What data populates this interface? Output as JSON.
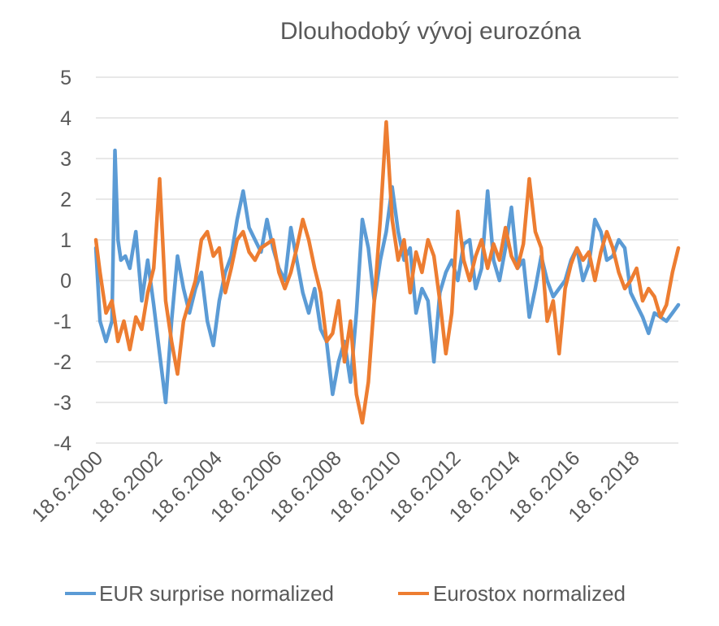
{
  "chart_data": {
    "type": "line",
    "title": "Dlouhodobý vývoj eurozóna",
    "xlabel": "",
    "ylabel": "",
    "ylim": [
      -4,
      5
    ],
    "yticks": [
      "5",
      "4",
      "3",
      "2",
      "1",
      "0",
      "-1",
      "-2",
      "-3",
      "-4"
    ],
    "ytick_values": [
      5,
      4,
      3,
      2,
      1,
      0,
      -1,
      -2,
      -3,
      -4
    ],
    "xlim": [
      2000.46,
      2020.0
    ],
    "xticks": [
      "18.6.2000",
      "18.6.2002",
      "18.6.2004",
      "18.6.2006",
      "18.6.2008",
      "18.6.2010",
      "18.6.2012",
      "18.6.2014",
      "18.6.2016",
      "18.6.2018"
    ],
    "xtick_values": [
      2000.46,
      2002.46,
      2004.46,
      2006.46,
      2008.46,
      2010.46,
      2012.46,
      2014.46,
      2016.46,
      2018.46
    ],
    "grid": true,
    "legend_position": "bottom",
    "series": [
      {
        "name": "EUR surprise normalized",
        "color": "#5b9bd5",
        "x": [
          2000.46,
          2000.6,
          2000.8,
          2001.0,
          2001.1,
          2001.2,
          2001.3,
          2001.45,
          2001.6,
          2001.8,
          2002.0,
          2002.2,
          2002.4,
          2002.6,
          2002.8,
          2003.0,
          2003.2,
          2003.4,
          2003.6,
          2003.8,
          2004.0,
          2004.2,
          2004.4,
          2004.6,
          2004.8,
          2005.0,
          2005.2,
          2005.4,
          2005.6,
          2005.8,
          2006.0,
          2006.2,
          2006.4,
          2006.6,
          2006.8,
          2007.0,
          2007.2,
          2007.4,
          2007.6,
          2007.8,
          2008.0,
          2008.2,
          2008.4,
          2008.6,
          2008.8,
          2009.0,
          2009.2,
          2009.4,
          2009.6,
          2009.8,
          2010.0,
          2010.2,
          2010.4,
          2010.6,
          2010.8,
          2011.0,
          2011.2,
          2011.4,
          2011.6,
          2011.8,
          2012.0,
          2012.2,
          2012.4,
          2012.6,
          2012.8,
          2013.0,
          2013.2,
          2013.4,
          2013.6,
          2013.8,
          2014.0,
          2014.2,
          2014.4,
          2014.6,
          2014.8,
          2015.0,
          2015.2,
          2015.4,
          2015.6,
          2015.8,
          2016.0,
          2016.2,
          2016.4,
          2016.6,
          2016.8,
          2017.0,
          2017.2,
          2017.4,
          2017.6,
          2017.8,
          2018.0,
          2018.2,
          2018.4,
          2018.6,
          2018.8,
          2019.0,
          2019.2,
          2019.4,
          2019.6,
          2019.8,
          2020.0
        ],
        "values": [
          0.8,
          -1.0,
          -1.5,
          -1.0,
          3.2,
          1.0,
          0.5,
          0.6,
          0.3,
          1.2,
          -0.5,
          0.5,
          -0.6,
          -1.8,
          -3.0,
          -1.0,
          0.6,
          -0.2,
          -0.8,
          -0.2,
          0.2,
          -1.0,
          -1.6,
          -0.5,
          0.2,
          0.6,
          1.5,
          2.2,
          1.3,
          1.0,
          0.7,
          1.5,
          0.8,
          0.3,
          0.0,
          1.3,
          0.5,
          -0.3,
          -0.8,
          -0.2,
          -1.2,
          -1.5,
          -2.8,
          -2.0,
          -1.5,
          -2.5,
          -0.8,
          1.5,
          0.8,
          -0.5,
          0.5,
          1.2,
          2.3,
          1.2,
          0.5,
          0.8,
          -0.8,
          -0.2,
          -0.5,
          -2.0,
          -0.3,
          0.2,
          0.5,
          0.0,
          0.9,
          1.0,
          -0.2,
          0.3,
          2.2,
          0.5,
          0.0,
          0.8,
          1.8,
          0.3,
          0.5,
          -0.9,
          -0.2,
          0.6,
          0.0,
          -0.4,
          -0.2,
          0.0,
          0.5,
          0.8,
          0.0,
          0.4,
          1.5,
          1.2,
          0.5,
          0.6,
          1.0,
          0.8,
          -0.3,
          -0.6,
          -0.9,
          -1.3,
          -0.8,
          -0.9,
          -1.0,
          -0.8,
          -0.6
        ]
      },
      {
        "name": "Eurostox normalized",
        "color": "#ed7d31",
        "x": [
          2000.46,
          2000.6,
          2000.8,
          2001.0,
          2001.2,
          2001.4,
          2001.6,
          2001.8,
          2002.0,
          2002.2,
          2002.4,
          2002.6,
          2002.8,
          2003.0,
          2003.2,
          2003.4,
          2003.6,
          2003.8,
          2004.0,
          2004.2,
          2004.4,
          2004.6,
          2004.8,
          2005.0,
          2005.2,
          2005.4,
          2005.6,
          2005.8,
          2006.0,
          2006.2,
          2006.4,
          2006.6,
          2006.8,
          2007.0,
          2007.2,
          2007.4,
          2007.6,
          2007.8,
          2008.0,
          2008.2,
          2008.4,
          2008.6,
          2008.8,
          2009.0,
          2009.2,
          2009.4,
          2009.6,
          2009.8,
          2010.0,
          2010.2,
          2010.4,
          2010.6,
          2010.8,
          2011.0,
          2011.2,
          2011.4,
          2011.6,
          2011.8,
          2012.0,
          2012.2,
          2012.4,
          2012.6,
          2012.8,
          2013.0,
          2013.2,
          2013.4,
          2013.6,
          2013.8,
          2014.0,
          2014.2,
          2014.4,
          2014.6,
          2014.8,
          2015.0,
          2015.2,
          2015.4,
          2015.6,
          2015.8,
          2016.0,
          2016.2,
          2016.4,
          2016.6,
          2016.8,
          2017.0,
          2017.2,
          2017.4,
          2017.6,
          2017.8,
          2018.0,
          2018.2,
          2018.4,
          2018.6,
          2018.8,
          2019.0,
          2019.2,
          2019.4,
          2019.6,
          2019.8,
          2020.0
        ],
        "values": [
          1.0,
          0.2,
          -0.8,
          -0.5,
          -1.5,
          -1.0,
          -1.7,
          -0.9,
          -1.2,
          -0.3,
          0.3,
          2.5,
          -0.5,
          -1.5,
          -2.3,
          -1.0,
          -0.5,
          0.0,
          1.0,
          1.2,
          0.6,
          0.8,
          -0.3,
          0.3,
          1.0,
          1.2,
          0.7,
          0.5,
          0.8,
          0.9,
          1.0,
          0.2,
          -0.2,
          0.2,
          0.8,
          1.5,
          1.0,
          0.3,
          -0.3,
          -1.5,
          -1.3,
          -0.5,
          -2.0,
          -1.0,
          -2.8,
          -3.5,
          -2.5,
          -0.5,
          1.5,
          3.9,
          1.5,
          0.5,
          1.0,
          -0.3,
          0.7,
          0.2,
          1.0,
          0.6,
          -0.5,
          -1.8,
          -0.8,
          1.7,
          0.5,
          0.0,
          0.6,
          1.0,
          0.3,
          0.9,
          0.5,
          1.3,
          0.6,
          0.3,
          0.9,
          2.5,
          1.2,
          0.8,
          -1.0,
          -0.5,
          -1.8,
          -0.2,
          0.4,
          0.8,
          0.5,
          0.7,
          0.0,
          0.7,
          1.2,
          0.8,
          0.2,
          -0.2,
          0.0,
          0.3,
          -0.5,
          -0.2,
          -0.4,
          -0.9,
          -0.6,
          0.2,
          0.8
        ]
      }
    ]
  }
}
